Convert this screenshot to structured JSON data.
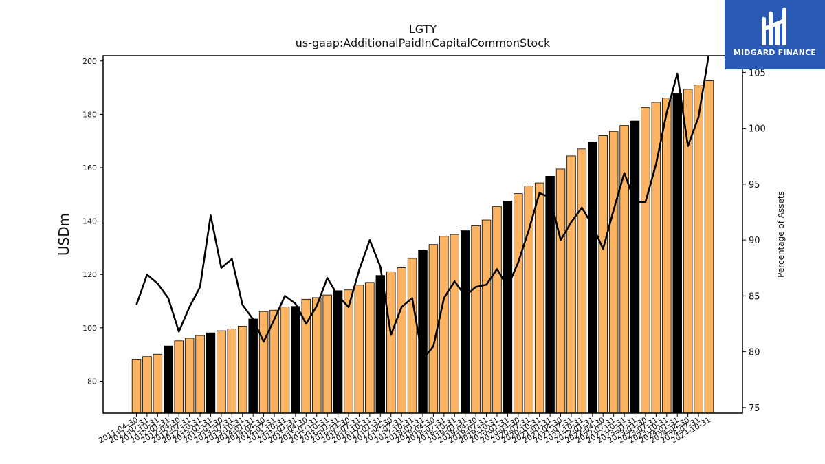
{
  "brand": {
    "name": "MIDGARD FINANCE",
    "logo_icon": "midgard-logo-icon",
    "background": "#2a5ab3"
  },
  "chart_data": {
    "type": "bar",
    "title": "LGTY",
    "subtitle": "us-gaap:AdditionalPaidInCapitalCommonStock",
    "ylabel": "USDm",
    "y2label": "Percentage of Assets",
    "ylim": [
      68,
      202
    ],
    "y2lim": [
      74.5,
      106.5
    ],
    "yticks": [
      80,
      100,
      120,
      140,
      160,
      180,
      200
    ],
    "y2ticks": [
      75,
      80,
      85,
      90,
      95,
      100,
      105
    ],
    "colors": {
      "bar": "#fdb462",
      "bar_highlight": "#000000",
      "line": "#000000"
    },
    "categories": [
      "2011-04-30",
      "2011-07-31",
      "2011-10-31",
      "2012-01-31",
      "2012-04-30",
      "2012-07-31",
      "2012-10-31",
      "2013-01-31",
      "2013-04-30",
      "2013-07-31",
      "2013-10-31",
      "2014-01-31",
      "2014-04-30",
      "2014-07-31",
      "2014-10-31",
      "2015-01-31",
      "2015-04-30",
      "2015-07-31",
      "2015-10-31",
      "2016-01-31",
      "2016-04-30",
      "2016-07-31",
      "2016-10-31",
      "2017-01-31",
      "2017-04-30",
      "2017-07-31",
      "2017-10-31",
      "2018-01-31",
      "2018-04-30",
      "2018-07-31",
      "2018-10-31",
      "2019-01-31",
      "2019-04-30",
      "2019-07-31",
      "2019-10-31",
      "2020-01-31",
      "2020-04-30",
      "2020-07-31",
      "2020-10-31",
      "2021-01-31",
      "2021-04-30",
      "2021-07-31",
      "2021-10-31",
      "2022-01-31",
      "2022-04-30",
      "2022-07-31",
      "2022-10-31",
      "2023-01-31",
      "2023-04-30",
      "2023-07-31",
      "2023-10-31",
      "2024-01-31",
      "2024-04-30",
      "2024-07-31",
      "2024-10-31"
    ],
    "series": [
      {
        "kind": "bar",
        "values": [
          88.2,
          89.2,
          90.1,
          93.2,
          95.1,
          96.1,
          97.1,
          98.1,
          98.9,
          99.6,
          100.6,
          103.3,
          106.1,
          106.6,
          107.8,
          108.0,
          110.7,
          111.3,
          112.3,
          113.9,
          114.2,
          116.0,
          117.0,
          119.6,
          121.0,
          122.5,
          126.0,
          129.0,
          131.2,
          134.3,
          135.0,
          136.4,
          138.2,
          140.4,
          145.5,
          147.5,
          150.3,
          153.2,
          154.3,
          156.8,
          159.5,
          164.4,
          167.0,
          169.7,
          172.0,
          173.6,
          175.8,
          177.5,
          182.6,
          184.5,
          186.1,
          187.7,
          189.4,
          191.0,
          192.6
        ],
        "highlight": [
          false,
          false,
          false,
          true,
          false,
          false,
          false,
          true,
          false,
          false,
          false,
          true,
          false,
          false,
          false,
          true,
          false,
          false,
          false,
          true,
          false,
          false,
          false,
          true,
          false,
          false,
          false,
          true,
          false,
          false,
          false,
          true,
          false,
          false,
          false,
          true,
          false,
          false,
          false,
          true,
          false,
          false,
          false,
          true,
          false,
          false,
          false,
          true,
          false,
          false,
          false,
          true,
          false,
          false,
          false
        ]
      },
      {
        "kind": "line",
        "axis": "right",
        "values": [
          84.2,
          86.9,
          86.1,
          84.8,
          81.8,
          84.0,
          85.8,
          92.2,
          87.5,
          88.3,
          84.2,
          82.9,
          80.9,
          82.9,
          85.0,
          84.3,
          82.5,
          84.1,
          86.6,
          85.0,
          84.0,
          87.3,
          90.0,
          87.6,
          81.5,
          84.0,
          84.8,
          79.3,
          80.5,
          84.8,
          86.3,
          85.0,
          85.8,
          86.0,
          87.4,
          85.8,
          88.0,
          90.9,
          94.2,
          93.8,
          90.0,
          91.6,
          92.9,
          91.3,
          89.2,
          92.7,
          96.0,
          93.4,
          93.4,
          96.8,
          101.4,
          104.9,
          98.4,
          101.0,
          106.8
        ]
      }
    ]
  }
}
